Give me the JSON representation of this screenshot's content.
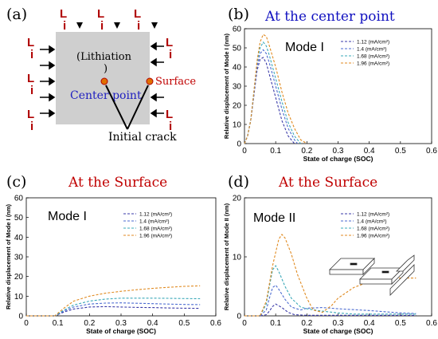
{
  "panel_a": {
    "label": "(a)",
    "arrow_letters": [
      "L",
      "i"
    ],
    "lithiation_text": "(Lithiation",
    "lithiation_close": ")",
    "center_point_label": "Center point",
    "surface_label": "Surface",
    "initial_crack_label": "Initial crack",
    "colors": {
      "square": "#cfcfcf",
      "center_text": "#2020c0",
      "surface_text": "#c00000",
      "letters": "#b00000",
      "dot": "#e07000"
    }
  },
  "chart_data": [
    {
      "panel": "(b)",
      "type": "line",
      "title": "At the center point",
      "title_color": "#1010c0",
      "mode_label": "Mode I",
      "xlabel": "State of charge (SOC)",
      "ylabel": "Relative displacement of Mode I (nm)",
      "xlim": [
        0,
        0.6
      ],
      "ylim": [
        0,
        60
      ],
      "xticks": [
        "0",
        "0.1",
        "0.2",
        "0.3",
        "0.4",
        "0.5",
        "0.6"
      ],
      "yticks": [
        "0",
        "10",
        "20",
        "30",
        "40",
        "50",
        "60"
      ],
      "legend_position": "top-right",
      "series": [
        {
          "name": "1.12 (mA/cm²)",
          "color": "#3a3aa8",
          "x": [
            0,
            0.01,
            0.02,
            0.03,
            0.04,
            0.05,
            0.06,
            0.07,
            0.08,
            0.1,
            0.12,
            0.14,
            0.16
          ],
          "y": [
            0,
            4,
            12,
            25,
            38,
            44,
            45,
            42,
            36,
            24,
            12,
            4,
            0
          ]
        },
        {
          "name": "1.4 (mA/cm²)",
          "color": "#4a6ad0",
          "x": [
            0,
            0.01,
            0.02,
            0.03,
            0.04,
            0.05,
            0.06,
            0.07,
            0.08,
            0.1,
            0.12,
            0.14,
            0.16,
            0.17
          ],
          "y": [
            0,
            4,
            12,
            26,
            40,
            47,
            49,
            47,
            42,
            30,
            18,
            8,
            2,
            0
          ]
        },
        {
          "name": "1.68 (mA/cm²)",
          "color": "#3aa8b8",
          "x": [
            0,
            0.01,
            0.02,
            0.03,
            0.04,
            0.05,
            0.06,
            0.07,
            0.08,
            0.1,
            0.12,
            0.14,
            0.16,
            0.18
          ],
          "y": [
            0,
            4,
            12,
            27,
            42,
            50,
            53,
            51,
            46,
            34,
            22,
            11,
            4,
            0
          ]
        },
        {
          "name": "1.96 (mA/cm²)",
          "color": "#e08a20",
          "x": [
            0,
            0.01,
            0.02,
            0.03,
            0.04,
            0.05,
            0.06,
            0.07,
            0.08,
            0.1,
            0.12,
            0.14,
            0.16,
            0.18,
            0.2
          ],
          "y": [
            0,
            4,
            12,
            27,
            43,
            53,
            57,
            56,
            51,
            40,
            27,
            16,
            8,
            2,
            0
          ]
        }
      ]
    },
    {
      "panel": "(c)",
      "type": "line",
      "title": "At  the Surface",
      "title_color": "#c00000",
      "mode_label": "Mode I",
      "xlabel": "State of charge (SOC)",
      "ylabel": "Relative displacement of Mode I (nm)",
      "xlim": [
        0,
        0.6
      ],
      "ylim": [
        0,
        60
      ],
      "xticks": [
        "0",
        "0.1",
        "0.2",
        "0.3",
        "0.4",
        "0.5",
        "0.6"
      ],
      "yticks": [
        "0",
        "10",
        "20",
        "30",
        "40",
        "50",
        "60"
      ],
      "legend_position": "top-right",
      "series": [
        {
          "name": "1.12 (mA/cm²)",
          "color": "#3a3aa8",
          "x": [
            0,
            0.09,
            0.12,
            0.15,
            0.2,
            0.25,
            0.3,
            0.35,
            0.4,
            0.45,
            0.5,
            0.55
          ],
          "y": [
            0,
            0,
            2,
            3.5,
            4.5,
            4.7,
            4.5,
            4.3,
            4.2,
            4.0,
            3.9,
            3.8
          ]
        },
        {
          "name": "1.4 (mA/cm²)",
          "color": "#4a6ad0",
          "x": [
            0,
            0.09,
            0.12,
            0.15,
            0.2,
            0.25,
            0.3,
            0.35,
            0.4,
            0.45,
            0.5,
            0.55
          ],
          "y": [
            0,
            0,
            2.5,
            4.5,
            6,
            6.5,
            6.6,
            6.4,
            6.2,
            6.0,
            5.8,
            5.7
          ]
        },
        {
          "name": "1.68 (mA/cm²)",
          "color": "#3aa8b8",
          "x": [
            0,
            0.09,
            0.12,
            0.15,
            0.2,
            0.25,
            0.3,
            0.35,
            0.4,
            0.45,
            0.5,
            0.55
          ],
          "y": [
            0,
            0,
            3,
            5.5,
            7.5,
            8.5,
            9.0,
            9.0,
            9.0,
            8.9,
            8.8,
            8.7
          ]
        },
        {
          "name": "1.96 (mA/cm²)",
          "color": "#e08a20",
          "x": [
            0,
            0.09,
            0.12,
            0.15,
            0.2,
            0.25,
            0.3,
            0.35,
            0.4,
            0.45,
            0.5,
            0.55
          ],
          "y": [
            0,
            0,
            4,
            7.5,
            10,
            11.5,
            12.5,
            13.3,
            14.0,
            14.5,
            15.0,
            15.3
          ]
        }
      ]
    },
    {
      "panel": "(d)",
      "type": "line",
      "title": "At the Surface",
      "title_color": "#c00000",
      "mode_label": "Mode II",
      "xlabel": "State of charge (SOC)",
      "ylabel": "Relative displacement of Mode II (nm)",
      "xlim": [
        0,
        0.6
      ],
      "ylim": [
        0,
        20
      ],
      "xticks": [
        "0",
        "0.1",
        "0.2",
        "0.3",
        "0.4",
        "0.5",
        "0.6"
      ],
      "yticks": [
        "0",
        "10",
        "20"
      ],
      "ytick_values": [
        0,
        10,
        20
      ],
      "legend_position": "top-right",
      "series": [
        {
          "name": "1.12 (mA/cm²)",
          "color": "#3a3aa8",
          "x": [
            0,
            0.05,
            0.07,
            0.08,
            0.09,
            0.1,
            0.12,
            0.14,
            0.16,
            0.2,
            0.25,
            0.3,
            0.35,
            0.4,
            0.45,
            0.5,
            0.55
          ],
          "y": [
            0,
            0,
            0.2,
            0.8,
            1.6,
            2.0,
            1.4,
            0.6,
            0.2,
            0.1,
            0.1,
            0.1,
            0.1,
            0.1,
            0.1,
            0.1,
            0.1
          ]
        },
        {
          "name": "1.4 (mA/cm²)",
          "color": "#4a6ad0",
          "x": [
            0,
            0.05,
            0.07,
            0.08,
            0.09,
            0.1,
            0.11,
            0.13,
            0.15,
            0.18,
            0.2,
            0.25,
            0.3,
            0.4,
            0.5,
            0.55
          ],
          "y": [
            0,
            0,
            1.0,
            3.0,
            4.8,
            5.2,
            4.5,
            2.8,
            1.5,
            1.0,
            1.3,
            1.4,
            1.2,
            0.9,
            0.5,
            0.4
          ]
        },
        {
          "name": "1.68 (mA/cm²)",
          "color": "#3aa8b8",
          "x": [
            0,
            0.05,
            0.07,
            0.08,
            0.09,
            0.1,
            0.11,
            0.13,
            0.15,
            0.18,
            0.2,
            0.25,
            0.3,
            0.35,
            0.4,
            0.45,
            0.5,
            0.55
          ],
          "y": [
            0,
            0,
            2.0,
            5.0,
            7.8,
            8.5,
            7.5,
            5.0,
            3.0,
            1.5,
            1.2,
            0.8,
            0.5,
            0.3,
            0.3,
            0.3,
            0.3,
            0.3
          ]
        },
        {
          "name": "1.96 (mA/cm²)",
          "color": "#e08a20",
          "x": [
            0,
            0.05,
            0.07,
            0.09,
            0.11,
            0.12,
            0.13,
            0.15,
            0.17,
            0.2,
            0.22,
            0.25,
            0.28,
            0.3,
            0.35,
            0.4,
            0.45,
            0.5,
            0.55
          ],
          "y": [
            0,
            0,
            2.5,
            8.5,
            13.0,
            13.8,
            13.2,
            10.5,
            7.0,
            3.0,
            1.0,
            0.6,
            1.8,
            3.0,
            4.8,
            5.8,
            6.3,
            6.4,
            6.4
          ]
        }
      ]
    }
  ]
}
